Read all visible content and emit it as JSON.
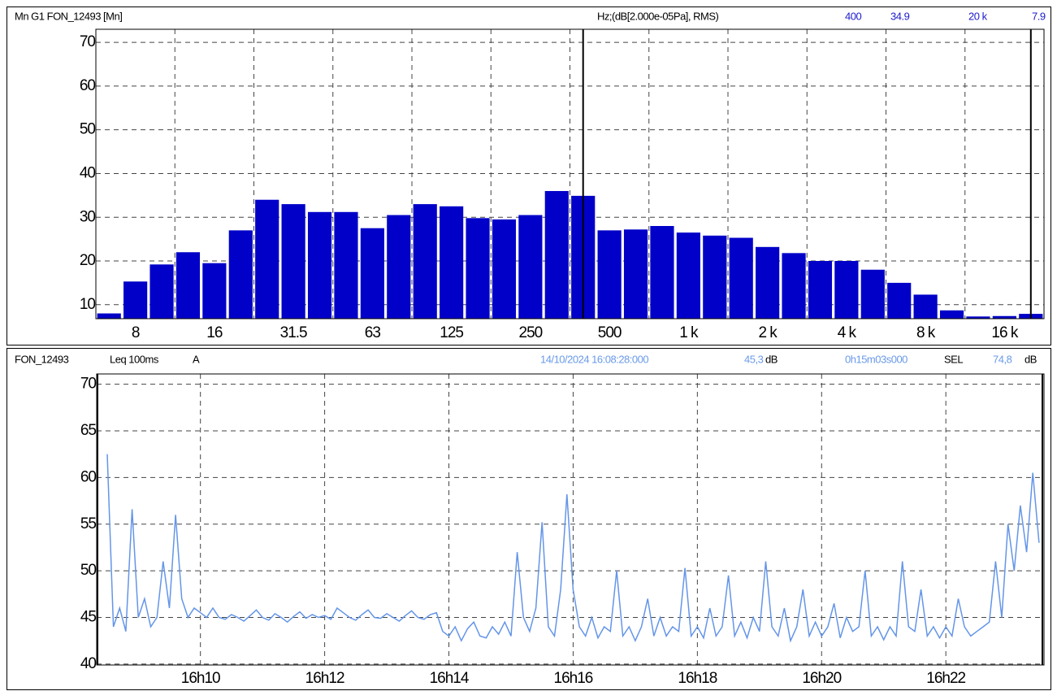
{
  "chart_data": [
    {
      "type": "bar",
      "title": "Mn G1 FON_12493 [Mn]",
      "unit_label": "Hz;(dB[2.000e-05Pa], RMS)",
      "cursors": [
        {
          "label": "400",
          "value": 34.9
        },
        {
          "label": "20 k",
          "value": 7.9
        }
      ],
      "categories": [
        null,
        "8",
        null,
        null,
        "16",
        null,
        null,
        "31.5",
        null,
        null,
        "63",
        null,
        null,
        "125",
        null,
        null,
        "250",
        null,
        null,
        "500",
        null,
        null,
        "1 k",
        null,
        null,
        "2 k",
        null,
        null,
        "4 k",
        null,
        null,
        "8 k",
        null,
        null,
        "16 k",
        null
      ],
      "values": [
        8,
        15.3,
        19.2,
        22,
        19.5,
        27,
        34,
        33,
        31.2,
        31.2,
        27.5,
        30.5,
        33,
        32.5,
        29.8,
        29.5,
        30.5,
        36,
        34.9,
        27,
        27.2,
        28,
        26.5,
        25.8,
        25.3,
        23.2,
        21.8,
        20,
        20,
        18,
        15,
        12.3,
        8.7,
        7.3,
        7.4,
        7.9
      ],
      "color": "#0000c8",
      "ylim": [
        6.8,
        73
      ],
      "yticks": [
        10,
        20,
        30,
        40,
        50,
        60,
        70
      ],
      "grid": true
    },
    {
      "type": "line",
      "title": "FON_12493",
      "measure": "Leq 100ms",
      "weighting": "A",
      "start": "14/10/2024 16:08:28:000",
      "cursor_value": {
        "value": 45.3,
        "label": "45,3"
      },
      "unit": "dB",
      "duration": "0h15m03s000",
      "sel_label": "SEL",
      "sel_value": {
        "value": 74.8,
        "label": "74,8"
      },
      "color": "#6495e8",
      "x": [
        8.5,
        8.6,
        8.7,
        8.8,
        8.9,
        9,
        9.1,
        9.2,
        9.3,
        9.4,
        9.5,
        9.6,
        9.7,
        9.8,
        9.9,
        10,
        10.1,
        10.2,
        10.3,
        10.4,
        10.5,
        10.6,
        10.7,
        10.8,
        10.9,
        11,
        11.1,
        11.2,
        11.3,
        11.4,
        11.5,
        11.6,
        11.7,
        11.8,
        11.9,
        12,
        12.1,
        12.2,
        12.3,
        12.4,
        12.5,
        12.6,
        12.7,
        12.8,
        12.9,
        13,
        13.1,
        13.2,
        13.3,
        13.4,
        13.5,
        13.6,
        13.7,
        13.8,
        13.9,
        14,
        14.1,
        14.2,
        14.3,
        14.4,
        14.5,
        14.6,
        14.7,
        14.8,
        14.9,
        15,
        15.1,
        15.2,
        15.3,
        15.4,
        15.5,
        15.6,
        15.7,
        15.8,
        15.9,
        16,
        16.1,
        16.2,
        16.3,
        16.4,
        16.5,
        16.6,
        16.7,
        16.8,
        16.9,
        17,
        17.1,
        17.2,
        17.3,
        17.4,
        17.5,
        17.6,
        17.7,
        17.8,
        17.9,
        18,
        18.1,
        18.2,
        18.3,
        18.4,
        18.5,
        18.6,
        18.7,
        18.8,
        18.9,
        19,
        19.1,
        19.2,
        19.3,
        19.4,
        19.5,
        19.6,
        19.7,
        19.8,
        19.9,
        20,
        20.1,
        20.2,
        20.3,
        20.4,
        20.5,
        20.6,
        20.7,
        20.8,
        20.9,
        21,
        21.1,
        21.2,
        21.3,
        21.4,
        21.5,
        21.6,
        21.7,
        21.8,
        21.9,
        22,
        22.1,
        22.2,
        22.3,
        22.4,
        22.5,
        22.6,
        22.7,
        22.8,
        22.9,
        23,
        23.1,
        23.2,
        23.3,
        23.4,
        23.5
      ],
      "values": [
        62.5,
        44,
        46,
        43.5,
        56.6,
        45,
        47,
        44,
        45,
        51,
        46,
        56,
        47,
        45,
        46,
        45.5,
        45,
        46,
        45,
        44.8,
        45.3,
        45,
        44.6,
        45.2,
        45.8,
        45,
        44.7,
        45.4,
        45,
        44.5,
        45.1,
        45.6,
        44.9,
        45.3,
        45,
        45.2,
        44.8,
        46,
        45.5,
        45,
        44.7,
        45.3,
        45.8,
        45,
        44.9,
        45.4,
        45,
        44.6,
        45.2,
        45.7,
        45,
        44.8,
        45.3,
        45.5,
        43.5,
        43,
        44,
        42.5,
        43.8,
        44.5,
        43,
        42.8,
        44,
        43.2,
        44.5,
        43,
        52,
        45,
        43.5,
        46,
        55.2,
        44,
        43,
        48,
        58.2,
        48,
        44,
        43,
        45,
        42.8,
        44,
        43.5,
        50,
        43,
        44,
        42.5,
        44,
        47,
        43,
        45,
        43,
        44,
        43.5,
        50.3,
        43,
        44,
        42.8,
        46,
        43,
        44,
        49.5,
        43,
        44.5,
        42.8,
        45,
        43.5,
        51,
        44,
        43,
        46,
        42.5,
        44,
        48,
        43,
        44.5,
        43,
        44,
        46.5,
        42.8,
        45,
        43.5,
        44,
        50,
        43,
        44,
        42.6,
        44,
        43,
        51,
        44,
        43.5,
        48,
        43,
        44,
        42.8,
        44,
        43,
        47,
        44,
        43,
        43.5,
        44,
        44.5,
        51,
        45,
        55,
        50,
        57,
        52,
        60.5,
        53
      ],
      "xlim": [
        8.33,
        23.58
      ],
      "xticks": [
        {
          "value": 10,
          "label": "16h10"
        },
        {
          "value": 12,
          "label": "16h12"
        },
        {
          "value": 14,
          "label": "16h14"
        },
        {
          "value": 16,
          "label": "16h16"
        },
        {
          "value": 18,
          "label": "16h18"
        },
        {
          "value": 20,
          "label": "16h20"
        },
        {
          "value": 22,
          "label": "16h22"
        }
      ],
      "ylim": [
        39.9,
        71.1
      ],
      "yticks": [
        40,
        45,
        50,
        55,
        60,
        65,
        70
      ],
      "grid": true
    }
  ]
}
